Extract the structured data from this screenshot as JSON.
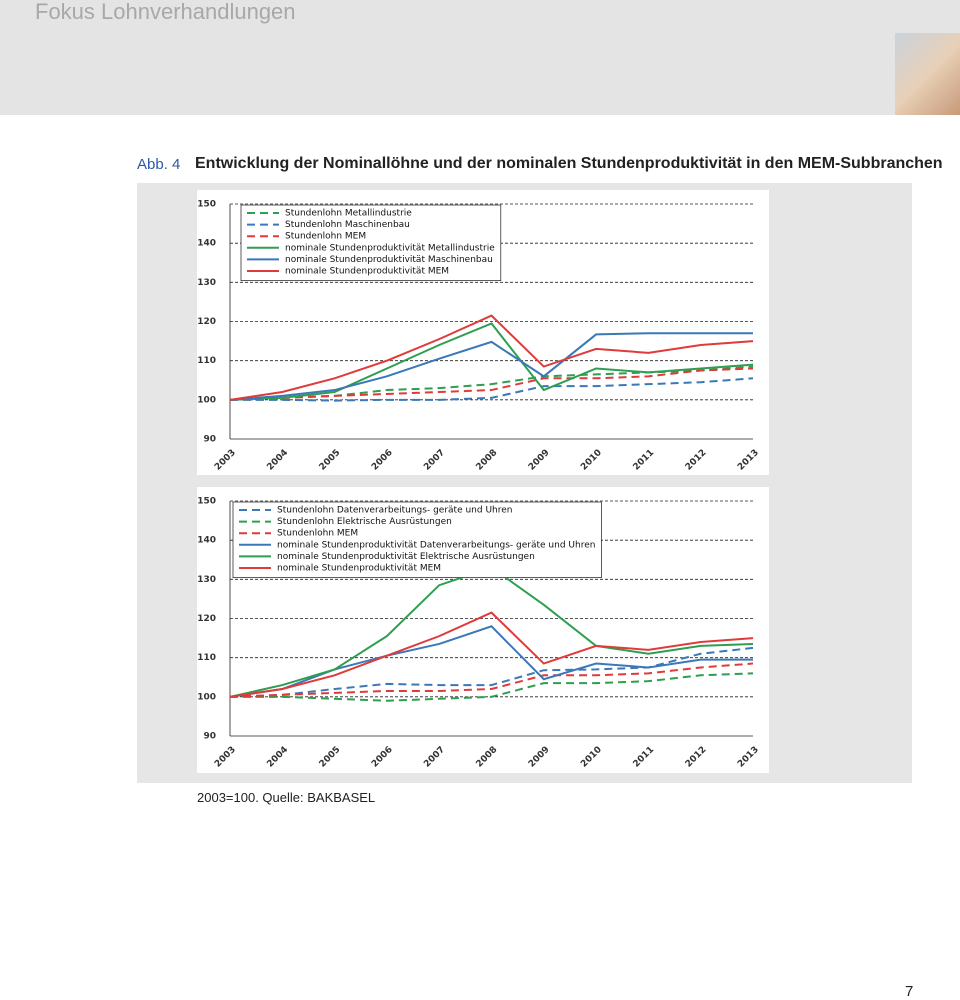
{
  "header": {
    "title": "Fokus Lohnverhandlungen"
  },
  "figure": {
    "label": "Abb. 4",
    "title": "Entwicklung der Nominallöhne und der nominalen Stundenproduktivität in den MEM-Subbranchen"
  },
  "chart_data": [
    {
      "type": "line",
      "categories": [
        "2003",
        "2004",
        "2005",
        "2006",
        "2007",
        "2008",
        "2009",
        "2010",
        "2011",
        "2012",
        "2013"
      ],
      "ylim": [
        90,
        150
      ],
      "yticks": [
        90,
        100,
        110,
        120,
        130,
        140,
        150
      ],
      "grid": true,
      "legend": "upper left",
      "series": [
        {
          "name": "Stundenlohn Metallindustrie",
          "color": "#2e9e4f",
          "style": "dashed",
          "values": [
            100,
            100.5,
            101,
            102.5,
            103,
            104,
            106,
            106.5,
            107,
            107.5,
            108.5
          ]
        },
        {
          "name": "Stundenlohn Maschinenbau",
          "color": "#3a78b8",
          "style": "dashed",
          "values": [
            100,
            100,
            99.8,
            100,
            100,
            100.5,
            103.5,
            103.5,
            104,
            104.5,
            105.5
          ]
        },
        {
          "name": "Stundenlohn MEM",
          "color": "#e03a3a",
          "style": "dashed",
          "values": [
            100,
            100.5,
            101,
            101.5,
            102,
            102.5,
            105.5,
            105.5,
            106,
            107.5,
            108
          ]
        },
        {
          "name": "nominale Stundenproduktivität Metallindustrie",
          "color": "#2e9e4f",
          "style": "solid",
          "values": [
            100,
            100.5,
            102,
            108,
            114,
            119.5,
            102.5,
            108,
            107,
            108,
            109
          ]
        },
        {
          "name": "nominale Stundenproduktivität Maschinenbau",
          "color": "#3a78b8",
          "style": "solid",
          "values": [
            100,
            101,
            102.5,
            106,
            110.5,
            114.8,
            106,
            116.7,
            117,
            117,
            117
          ]
        },
        {
          "name": "nominale Stundenproduktivität MEM",
          "color": "#e03a3a",
          "style": "solid",
          "values": [
            100,
            102,
            105.5,
            110,
            115.5,
            121.5,
            108.5,
            113,
            112,
            114,
            115
          ]
        }
      ]
    },
    {
      "type": "line",
      "categories": [
        "2003",
        "2004",
        "2005",
        "2006",
        "2007",
        "2008",
        "2009",
        "2010",
        "2011",
        "2012",
        "2013"
      ],
      "ylim": [
        90,
        150
      ],
      "yticks": [
        90,
        100,
        110,
        120,
        130,
        140,
        150
      ],
      "grid": true,
      "legend": "upper left",
      "series": [
        {
          "name": "Stundenlohn Datenverarbeitungs- geräte und Uhren",
          "color": "#3a78b8",
          "style": "dashed",
          "values": [
            100,
            100.5,
            102,
            103.3,
            103,
            103,
            106.8,
            107,
            107.5,
            111,
            112.5
          ]
        },
        {
          "name": "Stundenlohn Elektrische Ausrüstungen",
          "color": "#2e9e4f",
          "style": "dashed",
          "values": [
            100,
            100,
            99.5,
            99,
            99.5,
            100,
            103.5,
            103.5,
            104,
            105.5,
            106
          ]
        },
        {
          "name": "Stundenlohn MEM",
          "color": "#e03a3a",
          "style": "dashed",
          "values": [
            100,
            100.5,
            101,
            101.5,
            101.5,
            102,
            105.5,
            105.5,
            106,
            107.5,
            108.5
          ]
        },
        {
          "name": "nominale Stundenproduktivität Datenverarbeitungs- geräte und Uhren",
          "color": "#3a78b8",
          "style": "solid",
          "values": [
            100,
            102,
            107,
            110.5,
            113.5,
            118,
            104.5,
            108.5,
            107.5,
            109.5,
            109.5
          ]
        },
        {
          "name": "nominale Stundenproduktivität Elektrische Ausrüstungen",
          "color": "#2e9e4f",
          "style": "solid",
          "values": [
            100,
            103,
            107,
            115.5,
            128.5,
            133,
            123.5,
            113,
            111,
            113,
            113.5
          ]
        },
        {
          "name": "nominale Stundenproduktivität MEM",
          "color": "#e03a3a",
          "style": "solid",
          "values": [
            100,
            102,
            105.5,
            110.5,
            115.5,
            121.5,
            108.5,
            113,
            112,
            114,
            115
          ]
        }
      ]
    }
  ],
  "note": "2003=100. Quelle: BAKBASEL",
  "page_number": 7
}
